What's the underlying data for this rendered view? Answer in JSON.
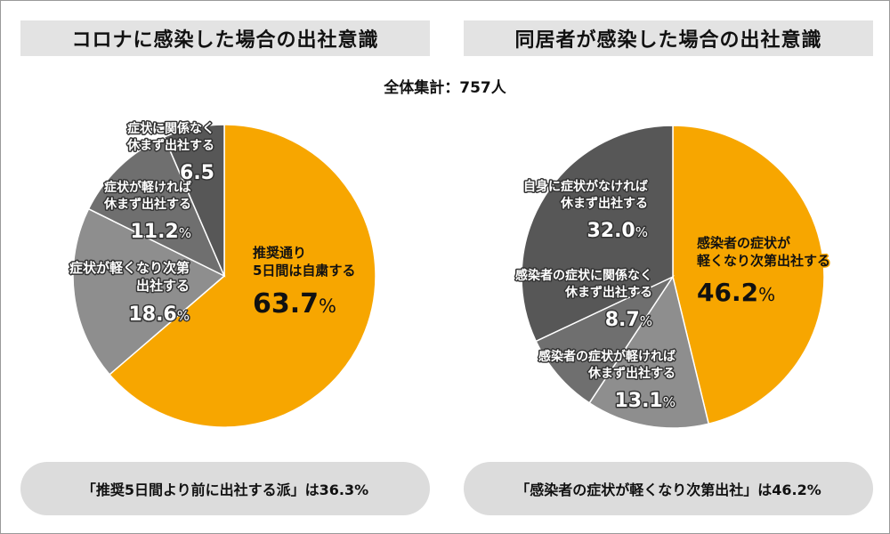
{
  "total": "全体集計：757人",
  "colors": {
    "orange": "#f7a600",
    "dark": "#575757",
    "mid": "#6f6f6f",
    "light": "#8e8e8e"
  },
  "chart_data": [
    {
      "type": "pie",
      "title": "コロナに感染した場合の出社意識",
      "slices": [
        {
          "name": "推奨通り5日間は自粛する",
          "lines": [
            "推奨通り",
            "5日間は自粛する"
          ],
          "value": 63.7,
          "display": "63.7",
          "color": "#f7a600"
        },
        {
          "name": "症状が軽くなり次第出社する",
          "lines": [
            "症状が軽くなり次第",
            "出社する"
          ],
          "value": 18.6,
          "display": "18.6",
          "color": "#8e8e8e"
        },
        {
          "name": "症状が軽ければ休まず出社する",
          "lines": [
            "症状が軽ければ",
            "休まず出社する"
          ],
          "value": 11.2,
          "display": "11.2",
          "color": "#6f6f6f"
        },
        {
          "name": "症状に関係なく休まず出社する",
          "lines": [
            "症状に関係なく",
            "休まず出社する"
          ],
          "value": 6.5,
          "display": "6.5",
          "color": "#575757"
        }
      ],
      "summary": "「推奨5日間より前に出社する派」は36.3%"
    },
    {
      "type": "pie",
      "title": "同居者が感染した場合の出社意識",
      "slices": [
        {
          "name": "感染者の症状が軽くなり次第出社する",
          "lines": [
            "感染者の症状が",
            "軽くなり次第出社する"
          ],
          "value": 46.2,
          "display": "46.2",
          "color": "#f7a600"
        },
        {
          "name": "感染者の症状が軽ければ休まず出社する",
          "lines": [
            "感染者の症状が軽ければ",
            "休まず出社する"
          ],
          "value": 13.1,
          "display": "13.1",
          "color": "#8e8e8e"
        },
        {
          "name": "感染者の症状に関係なく休まず出社する",
          "lines": [
            "感染者の症状に関係なく",
            "休まず出社する"
          ],
          "value": 8.7,
          "display": "8.7",
          "color": "#6f6f6f"
        },
        {
          "name": "自身に症状がなければ休まず出社する",
          "lines": [
            "自身に症状がなければ",
            "休まず出社する"
          ],
          "value": 32.0,
          "display": "32.0",
          "color": "#575757"
        }
      ],
      "summary": "「感染者の症状が軽くなり次第出社」は46.2%"
    }
  ]
}
